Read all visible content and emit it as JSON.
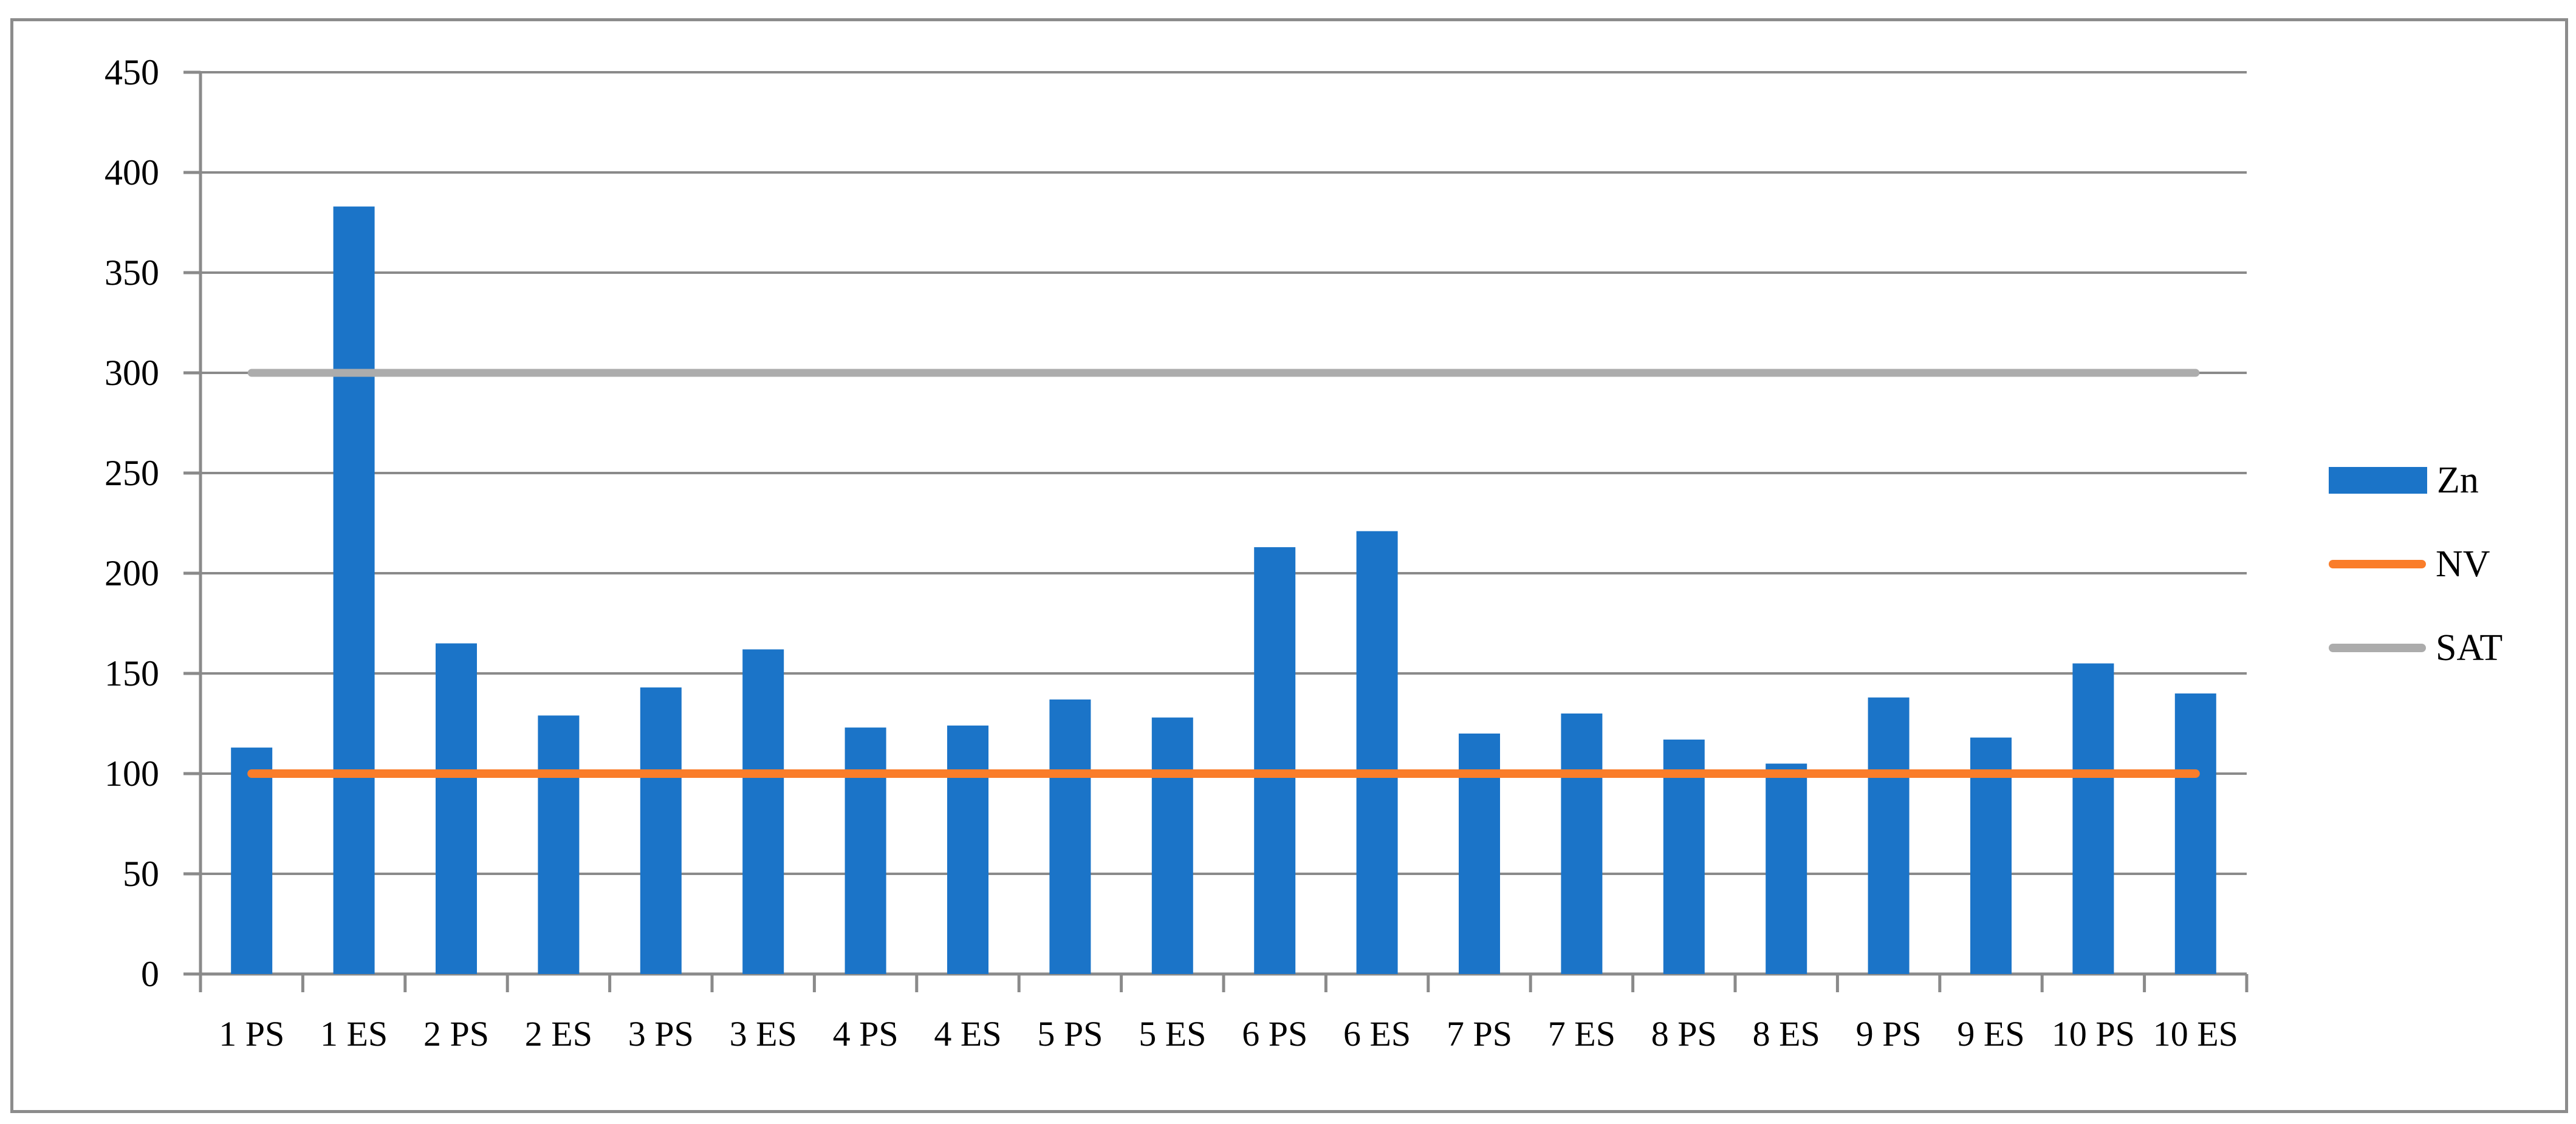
{
  "figure": {
    "background_color": "#FFFFFF",
    "border_color": "#8C8C8C",
    "axis_color": "#8A8A8A",
    "text_color": "#000000"
  },
  "chart_data": {
    "type": "bar",
    "title": "",
    "xlabel": "",
    "ylabel": "",
    "categories": [
      "1 PS",
      "1 ES",
      "2 PS",
      "2 ES",
      "3 PS",
      "3 ES",
      "4 PS",
      "4 ES",
      "5 PS",
      "5 ES",
      "6 PS",
      "6 ES",
      "7 PS",
      "7 ES",
      "8 PS",
      "8 ES",
      "9 PS",
      "9 ES",
      "10 PS",
      "10 ES"
    ],
    "series": [
      {
        "name": "Zn",
        "type": "bar",
        "color": "#1B74C8",
        "values": [
          113,
          383,
          165,
          129,
          143,
          162,
          123,
          124,
          137,
          128,
          213,
          221,
          120,
          130,
          117,
          105,
          138,
          118,
          155,
          140
        ]
      },
      {
        "name": "NV",
        "type": "line",
        "color": "#FA7D2A",
        "constant_value": 100
      },
      {
        "name": "SAT",
        "type": "line",
        "color": "#ACACAC",
        "constant_value": 300
      }
    ],
    "ylim": [
      0,
      450
    ],
    "ytick_step": 50,
    "yticks": [
      0,
      50,
      100,
      150,
      200,
      250,
      300,
      350,
      400,
      450
    ],
    "grid": "horizontal",
    "grid_color": "#8A8A8A",
    "legend_position": "right-middle"
  },
  "legend": {
    "items": [
      {
        "label": "Zn",
        "swatch": "bar",
        "color": "#1B74C8"
      },
      {
        "label": "NV",
        "swatch": "line",
        "color": "#FA7D2A"
      },
      {
        "label": "SAT",
        "swatch": "line",
        "color": "#ACACAC"
      }
    ]
  }
}
